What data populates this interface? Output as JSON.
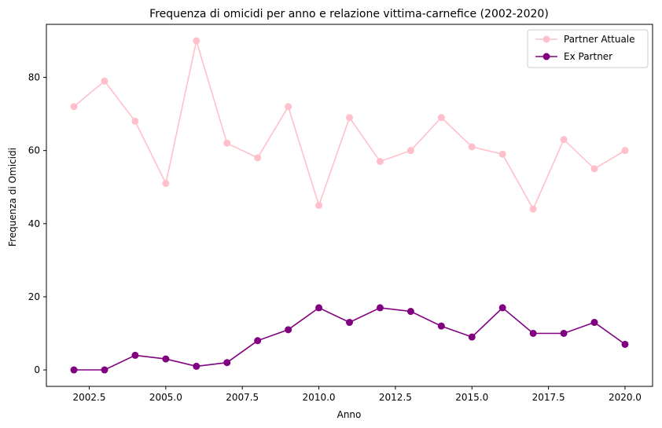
{
  "chart_data": {
    "type": "line",
    "title": "Frequenza di omicidi per anno e relazione vittima-carnefice (2002-2020)",
    "xlabel": "Anno",
    "ylabel": "Frequenza di Omicidi",
    "x": [
      2002,
      2003,
      2004,
      2005,
      2006,
      2007,
      2008,
      2009,
      2010,
      2011,
      2012,
      2013,
      2014,
      2015,
      2016,
      2017,
      2018,
      2019,
      2020
    ],
    "series": [
      {
        "name": "Partner Attuale",
        "color": "#ffc0cb",
        "values": [
          72,
          79,
          68,
          51,
          90,
          62,
          58,
          72,
          45,
          69,
          57,
          60,
          69,
          61,
          59,
          44,
          63,
          55,
          60
        ]
      },
      {
        "name": "Ex Partner",
        "color": "#800080",
        "values": [
          0,
          0,
          4,
          3,
          1,
          2,
          8,
          11,
          17,
          13,
          17,
          16,
          12,
          9,
          17,
          10,
          10,
          13,
          7
        ]
      }
    ],
    "xlim": [
      2001.1,
      2020.9
    ],
    "ylim": [
      -4.5,
      94.5
    ],
    "xticks": [
      "2002.5",
      "2005.0",
      "2007.5",
      "2010.0",
      "2012.5",
      "2015.0",
      "2017.5",
      "2020.0"
    ],
    "yticks": [
      "0",
      "20",
      "40",
      "60",
      "80"
    ],
    "grid": false,
    "legend_position": "top-right"
  }
}
